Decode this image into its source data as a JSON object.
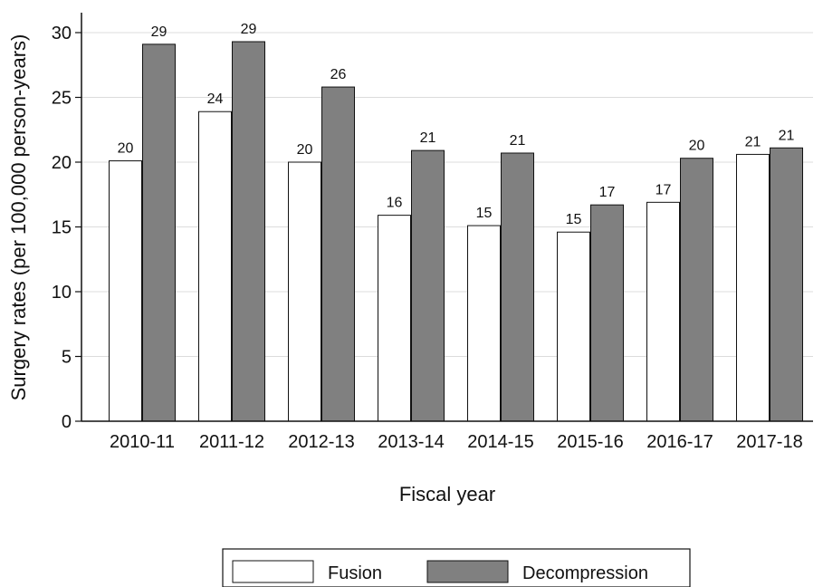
{
  "chart_data": {
    "type": "bar",
    "title": "",
    "xlabel": "Fiscal year",
    "ylabel": "Surgery rates (per 100,000 person-years)",
    "ylim": [
      0,
      31
    ],
    "yticks": [
      0,
      5,
      10,
      15,
      20,
      25,
      30
    ],
    "grid": true,
    "legend_position": "bottom",
    "categories": [
      "2010-11",
      "2011-12",
      "2012-13",
      "2013-14",
      "2014-15",
      "2015-16",
      "2016-17",
      "2017-18"
    ],
    "series": [
      {
        "name": "Fusion",
        "color": "#ffffff",
        "values": [
          20.1,
          23.9,
          20.0,
          15.9,
          15.1,
          14.6,
          16.9,
          20.6
        ],
        "labels": [
          "20",
          "24",
          "20",
          "16",
          "15",
          "15",
          "17",
          "21"
        ]
      },
      {
        "name": "Decompression",
        "color": "#808080",
        "values": [
          29.1,
          29.3,
          25.8,
          20.9,
          20.7,
          16.7,
          20.3,
          21.1
        ],
        "labels": [
          "29",
          "29",
          "26",
          "21",
          "21",
          "17",
          "20",
          "21"
        ]
      }
    ]
  }
}
